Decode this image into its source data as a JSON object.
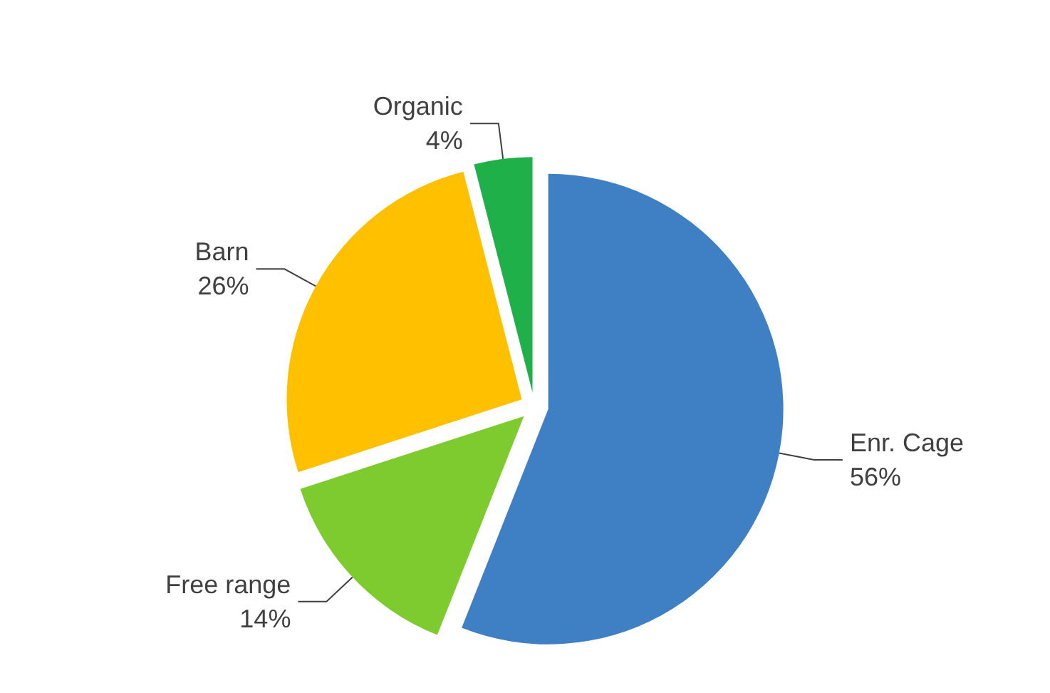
{
  "chart_data": {
    "type": "pie",
    "categories": [
      "Enr. Cage",
      "Free range",
      "Barn",
      "Organic"
    ],
    "values": [
      56,
      14,
      26,
      4
    ],
    "value_labels": [
      "56%",
      "14%",
      "26%",
      "4%"
    ],
    "colors": [
      "#3f7fc4",
      "#7ecb2f",
      "#ffc000",
      "#1fb04a"
    ],
    "legend": false
  }
}
